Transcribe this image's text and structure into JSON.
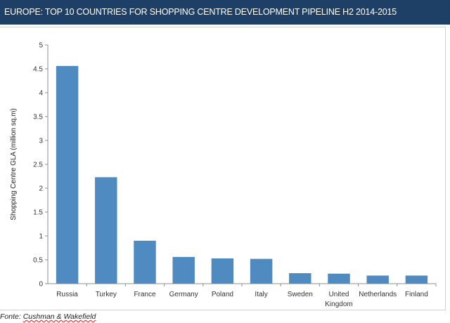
{
  "header": {
    "title": "EUROPE: TOP 10 COUNTRIES FOR SHOPPING CENTRE DEVELOPMENT PIPELINE H2 2014-2015"
  },
  "source": {
    "prefix": "Fonte: ",
    "org": "Cushman & Wakefield"
  },
  "colors": {
    "header_bg": "#1e3f66",
    "bar": "#4f8bc0",
    "axis": "#8c8c8c"
  },
  "chart_data": {
    "type": "bar",
    "title": "",
    "xlabel": "",
    "ylabel": "Shopping Centre GLA (million sq.m)",
    "ylim": [
      0,
      5
    ],
    "yticks": [
      "0",
      "0.5",
      "1",
      "1.5",
      "2",
      "2.5",
      "3",
      "3.5",
      "4",
      "4.5",
      "5"
    ],
    "yticks_values": [
      0,
      0.5,
      1,
      1.5,
      2,
      2.5,
      3,
      3.5,
      4,
      4.5,
      5
    ],
    "categories": [
      "Russia",
      "Turkey",
      "France",
      "Germany",
      "Poland",
      "Italy",
      "Sweden",
      "United Kingdom",
      "Netherlands",
      "Finland"
    ],
    "category_lines": [
      [
        "Russia"
      ],
      [
        "Turkey"
      ],
      [
        "France"
      ],
      [
        "Germany"
      ],
      [
        "Poland"
      ],
      [
        "Italy"
      ],
      [
        "Sweden"
      ],
      [
        "United",
        "Kingdom"
      ],
      [
        "Netherlands"
      ],
      [
        "Finland"
      ]
    ],
    "values": [
      4.56,
      2.23,
      0.9,
      0.56,
      0.53,
      0.52,
      0.22,
      0.21,
      0.17,
      0.17
    ],
    "grid": false,
    "legend": "none"
  }
}
